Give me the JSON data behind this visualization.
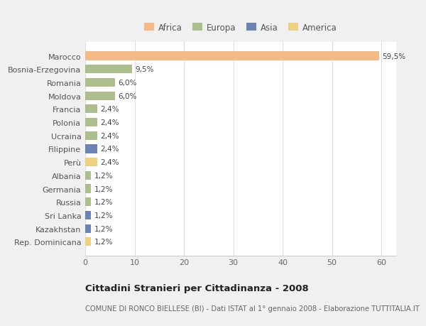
{
  "countries": [
    "Marocco",
    "Bosnia-Erzegovina",
    "Romania",
    "Moldova",
    "Francia",
    "Polonia",
    "Ucraina",
    "Filippine",
    "Perù",
    "Albania",
    "Germania",
    "Russia",
    "Sri Lanka",
    "Kazakhstan",
    "Rep. Dominicana"
  ],
  "values": [
    59.5,
    9.5,
    6.0,
    6.0,
    2.4,
    2.4,
    2.4,
    2.4,
    2.4,
    1.2,
    1.2,
    1.2,
    1.2,
    1.2,
    1.2
  ],
  "labels": [
    "59,5%",
    "9,5%",
    "6,0%",
    "6,0%",
    "2,4%",
    "2,4%",
    "2,4%",
    "2,4%",
    "2,4%",
    "1,2%",
    "1,2%",
    "1,2%",
    "1,2%",
    "1,2%",
    "1,2%"
  ],
  "continents": [
    "Africa",
    "Europa",
    "Europa",
    "Europa",
    "Europa",
    "Europa",
    "Europa",
    "Asia",
    "America",
    "Europa",
    "Europa",
    "Europa",
    "Asia",
    "Asia",
    "America"
  ],
  "colors": {
    "Africa": "#F5B887",
    "Europa": "#ABBE8B",
    "Asia": "#6B83B5",
    "America": "#EDD080"
  },
  "xlim": [
    0,
    63
  ],
  "xticks": [
    0,
    10,
    20,
    30,
    40,
    50,
    60
  ],
  "legend_order": [
    "Africa",
    "Europa",
    "Asia",
    "America"
  ],
  "title": "Cittadini Stranieri per Cittadinanza - 2008",
  "subtitle": "COMUNE DI RONCO BIELLESE (BI) - Dati ISTAT al 1° gennaio 2008 - Elaborazione TUTTITALIA.IT",
  "background_color": "#f0f0f0",
  "plot_background_color": "#ffffff",
  "bar_height": 0.65
}
